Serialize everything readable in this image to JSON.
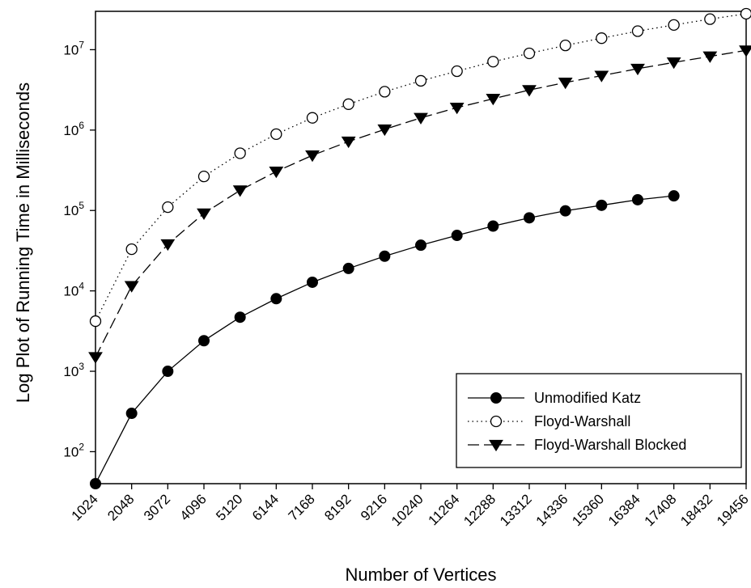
{
  "chart_data": {
    "type": "line",
    "title": "",
    "xlabel": "Number of Vertices",
    "ylabel": "Log Plot of Running Time in Milliseconds",
    "yscale": "log",
    "ylim": [
      40,
      30000000
    ],
    "x": [
      1024,
      2048,
      3072,
      4096,
      5120,
      6144,
      7168,
      8192,
      9216,
      10240,
      11264,
      12288,
      13312,
      14336,
      15360,
      16384,
      17408,
      18432,
      19456
    ],
    "y_ticks": [
      {
        "base": "10",
        "exp": "2",
        "value": 100
      },
      {
        "base": "10",
        "exp": "3",
        "value": 1000
      },
      {
        "base": "10",
        "exp": "4",
        "value": 10000
      },
      {
        "base": "10",
        "exp": "5",
        "value": 100000
      },
      {
        "base": "10",
        "exp": "6",
        "value": 1000000
      },
      {
        "base": "10",
        "exp": "7",
        "value": 10000000
      }
    ],
    "grid": false,
    "legend_position": "bottom-right",
    "series": [
      {
        "name": "Unmodified Katz",
        "marker": "filled-circle",
        "line": "solid",
        "x": [
          1024,
          2048,
          3072,
          4096,
          5120,
          6144,
          7168,
          8192,
          9216,
          10240,
          11264,
          12288,
          13312,
          14336,
          15360,
          16384,
          17408
        ],
        "values": [
          40,
          300,
          1000,
          2400,
          4700,
          8000,
          12800,
          19000,
          27000,
          37000,
          49000,
          64000,
          81000,
          99000,
          116000,
          136000,
          152000
        ]
      },
      {
        "name": "Floyd-Warshall",
        "marker": "open-circle",
        "line": "dotted",
        "x": [
          1024,
          2048,
          3072,
          4096,
          5120,
          6144,
          7168,
          8192,
          9216,
          10240,
          11264,
          12288,
          13312,
          14336,
          15360,
          16384,
          17408,
          18432,
          19456
        ],
        "values": [
          4200,
          33000,
          110000,
          265000,
          515000,
          890000,
          1420000,
          2100000,
          3000000,
          4100000,
          5400000,
          7100000,
          9000000,
          11300000,
          13900000,
          17000000,
          20300000,
          24000000,
          28000000
        ]
      },
      {
        "name": "Floyd-Warshall Blocked",
        "marker": "filled-triangle-down",
        "line": "dashed",
        "x": [
          1024,
          2048,
          3072,
          4096,
          5120,
          6144,
          7168,
          8192,
          9216,
          10240,
          11264,
          12288,
          13312,
          14336,
          15360,
          16384,
          17408,
          18432,
          19456
        ],
        "values": [
          1500,
          11500,
          38000,
          92000,
          178000,
          305000,
          485000,
          720000,
          1020000,
          1420000,
          1900000,
          2450000,
          3150000,
          3900000,
          4750000,
          5800000,
          6950000,
          8250000,
          9800000
        ]
      }
    ]
  }
}
